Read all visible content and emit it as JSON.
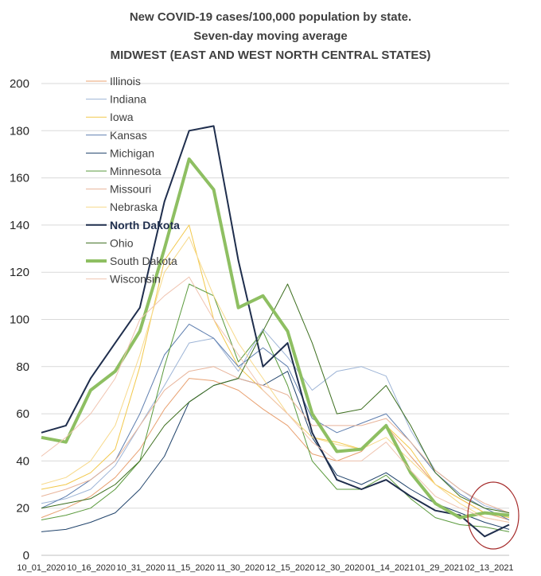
{
  "chart_data": {
    "type": "line",
    "title": "New COVID-19 cases/100,000 population by state.",
    "subtitle": "Seven-day moving average",
    "subtitle2": "MIDWEST (EAST AND WEST NORTH CENTRAL STATES)",
    "xlabel": "",
    "ylabel": "",
    "ylim": [
      0,
      200
    ],
    "yticks": [
      "0",
      "20",
      "40",
      "60",
      "80",
      "100",
      "120",
      "140",
      "160",
      "180",
      "200"
    ],
    "xticks": [
      "10_01_2020",
      "10_16_2020",
      "10_31_2020",
      "11_15_2020",
      "11_30_2020",
      "12_15_2020",
      "12_30_2020",
      "01_14_2021",
      "01_29_2021",
      "02_13_2021"
    ],
    "x_start": "2020-10-01",
    "x_end": "2021-02-19",
    "grid": true,
    "legend": "top-left, inside plot",
    "annotation": "red ellipse highlighting the last week of data",
    "x": [
      "10/01",
      "10/08",
      "10/16",
      "10/23",
      "10/31",
      "11/07",
      "11/15",
      "11/22",
      "11/30",
      "12/07",
      "12/15",
      "12/22",
      "12/30",
      "01/06",
      "01/14",
      "01/21",
      "01/29",
      "02/06",
      "02/13",
      "02/19"
    ],
    "series": [
      {
        "name": "Illinois",
        "color": "#e8a070",
        "width": 1,
        "values": [
          16,
          20,
          25,
          33,
          45,
          62,
          75,
          74,
          70,
          62,
          55,
          43,
          40,
          44,
          55,
          42,
          30,
          24,
          18,
          15
        ]
      },
      {
        "name": "Indiana",
        "color": "#9db4d6",
        "width": 1,
        "values": [
          22,
          24,
          28,
          38,
          55,
          72,
          90,
          92,
          78,
          96,
          84,
          70,
          78,
          80,
          76,
          53,
          36,
          28,
          21,
          18
        ]
      },
      {
        "name": "Iowa",
        "color": "#f2c84b",
        "width": 1,
        "values": [
          28,
          30,
          35,
          45,
          80,
          125,
          140,
          100,
          80,
          70,
          60,
          50,
          48,
          45,
          55,
          45,
          30,
          24,
          18,
          16
        ]
      },
      {
        "name": "Kansas",
        "color": "#5f7faf",
        "width": 1,
        "values": [
          20,
          25,
          32,
          40,
          60,
          85,
          98,
          92,
          80,
          88,
          80,
          58,
          52,
          56,
          60,
          48,
          35,
          26,
          20,
          15
        ]
      },
      {
        "name": "Michigan",
        "color": "#20436b",
        "width": 1,
        "values": [
          10,
          11,
          14,
          18,
          28,
          42,
          65,
          72,
          75,
          72,
          78,
          50,
          34,
          30,
          35,
          28,
          22,
          18,
          14,
          11
        ]
      },
      {
        "name": "Minnesota",
        "color": "#5a9a3c",
        "width": 1,
        "values": [
          15,
          17,
          20,
          28,
          40,
          80,
          115,
          110,
          82,
          95,
          72,
          40,
          28,
          28,
          34,
          24,
          16,
          13,
          12,
          10
        ]
      },
      {
        "name": "Missouri",
        "color": "#e8b49a",
        "width": 1,
        "values": [
          25,
          28,
          32,
          40,
          55,
          70,
          78,
          80,
          75,
          72,
          68,
          55,
          55,
          55,
          58,
          48,
          36,
          28,
          22,
          18
        ]
      },
      {
        "name": "Nebraska",
        "color": "#f7d98a",
        "width": 1,
        "values": [
          30,
          33,
          40,
          55,
          85,
          120,
          135,
          110,
          90,
          75,
          60,
          50,
          47,
          45,
          50,
          40,
          30,
          22,
          16,
          14
        ]
      },
      {
        "name": "North Dakota",
        "color": "#1f2e4d",
        "width": 2,
        "values": [
          52,
          55,
          75,
          90,
          105,
          150,
          180,
          182,
          125,
          80,
          90,
          52,
          32,
          28,
          32,
          25,
          19,
          17,
          8,
          13
        ]
      },
      {
        "name": "Ohio",
        "color": "#3c6e1e",
        "width": 1,
        "values": [
          20,
          22,
          24,
          30,
          40,
          55,
          65,
          72,
          75,
          95,
          115,
          90,
          60,
          62,
          72,
          55,
          35,
          25,
          20,
          18
        ]
      },
      {
        "name": "South Dakota",
        "color": "#8ebf62",
        "width": 4,
        "values": [
          50,
          48,
          70,
          78,
          95,
          130,
          168,
          155,
          105,
          110,
          95,
          60,
          44,
          45,
          55,
          35,
          22,
          16,
          18,
          17
        ]
      },
      {
        "name": "Wisconsin",
        "color": "#f0c4b0",
        "width": 1,
        "values": [
          42,
          50,
          60,
          75,
          100,
          110,
          118,
          100,
          85,
          70,
          60,
          48,
          40,
          40,
          48,
          36,
          25,
          20,
          16,
          14
        ]
      }
    ]
  }
}
